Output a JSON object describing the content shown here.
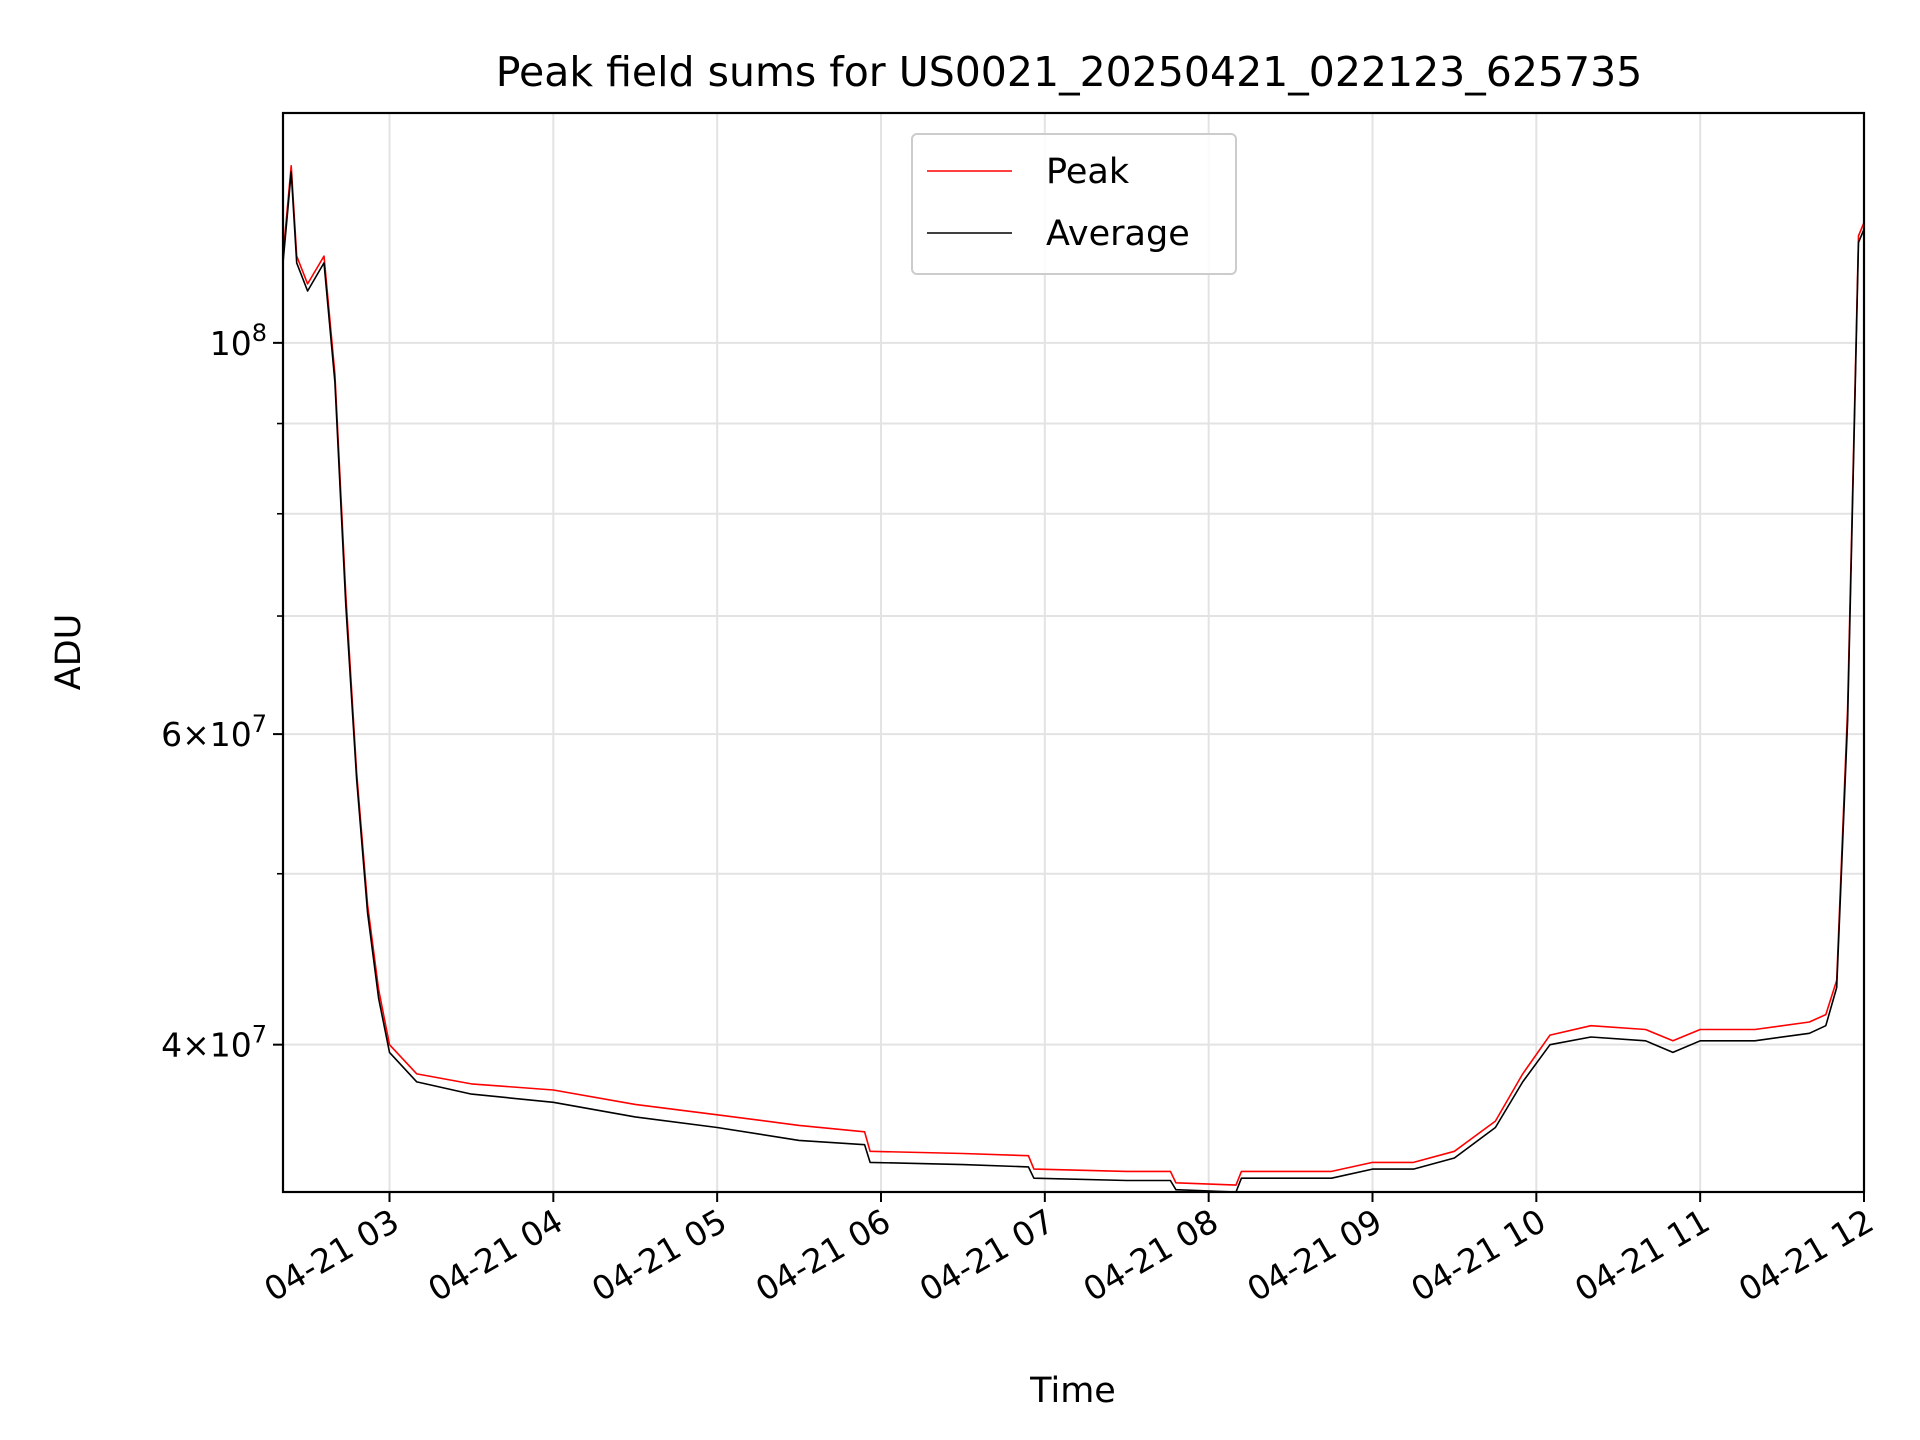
{
  "chart_data": {
    "type": "line",
    "title": "Peak field sums for US0021_20250421_022123_625735",
    "xlabel": "Time",
    "ylabel": "ADU",
    "yscale": "log",
    "grid": true,
    "legend_position": "top-center",
    "x_ticks": [
      "04-21 03",
      "04-21 04",
      "04-21 05",
      "04-21 06",
      "04-21 07",
      "04-21 08",
      "04-21 09",
      "04-21 10",
      "04-21 11",
      "04-21 12"
    ],
    "y_ticks": [
      "10^8",
      "6×10^7",
      "4×10^7"
    ],
    "xlim": [
      "2025-04-21 02:21",
      "2025-04-21 12:00"
    ],
    "ylim": [
      33000000,
      135000000
    ],
    "series": [
      {
        "name": "Peak",
        "color": "#ff0000",
        "x": [
          "2025-04-21 02:21",
          "2025-04-21 02:24",
          "2025-04-21 02:26",
          "2025-04-21 02:30",
          "2025-04-21 02:36",
          "2025-04-21 02:40",
          "2025-04-21 02:44",
          "2025-04-21 02:48",
          "2025-04-21 02:52",
          "2025-04-21 02:56",
          "2025-04-21 03:00",
          "2025-04-21 03:10",
          "2025-04-21 03:30",
          "2025-04-21 04:00",
          "2025-04-21 04:30",
          "2025-04-21 05:00",
          "2025-04-21 05:30",
          "2025-04-21 05:54",
          "2025-04-21 05:56",
          "2025-04-21 06:30",
          "2025-04-21 06:54",
          "2025-04-21 06:56",
          "2025-04-21 07:30",
          "2025-04-21 07:46",
          "2025-04-21 07:48",
          "2025-04-21 08:10",
          "2025-04-21 08:12",
          "2025-04-21 08:45",
          "2025-04-21 09:00",
          "2025-04-21 09:15",
          "2025-04-21 09:30",
          "2025-04-21 09:45",
          "2025-04-21 09:55",
          "2025-04-21 10:05",
          "2025-04-21 10:20",
          "2025-04-21 10:40",
          "2025-04-21 10:50",
          "2025-04-21 11:00",
          "2025-04-21 11:20",
          "2025-04-21 11:40",
          "2025-04-21 11:46",
          "2025-04-21 11:50",
          "2025-04-21 11:54",
          "2025-04-21 11:58",
          "2025-04-21 12:00"
        ],
        "values": [
          112000000,
          126000000,
          112000000,
          108000000,
          112000000,
          96000000,
          72000000,
          57000000,
          48000000,
          43000000,
          40000000,
          38500000,
          38000000,
          37700000,
          37000000,
          36500000,
          36000000,
          35700000,
          34800000,
          34700000,
          34600000,
          34000000,
          33900000,
          33900000,
          33400000,
          33300000,
          33900000,
          33900000,
          34300000,
          34300000,
          34800000,
          36200000,
          38500000,
          40500000,
          41000000,
          40800000,
          40200000,
          40800000,
          40800000,
          41200000,
          41600000,
          43500000,
          62000000,
          115000000,
          117000000
        ]
      },
      {
        "name": "Average",
        "color": "#000000",
        "x": [
          "2025-04-21 02:21",
          "2025-04-21 02:24",
          "2025-04-21 02:26",
          "2025-04-21 02:30",
          "2025-04-21 02:36",
          "2025-04-21 02:40",
          "2025-04-21 02:44",
          "2025-04-21 02:48",
          "2025-04-21 02:52",
          "2025-04-21 02:56",
          "2025-04-21 03:00",
          "2025-04-21 03:10",
          "2025-04-21 03:30",
          "2025-04-21 04:00",
          "2025-04-21 04:30",
          "2025-04-21 05:00",
          "2025-04-21 05:30",
          "2025-04-21 05:54",
          "2025-04-21 05:56",
          "2025-04-21 06:30",
          "2025-04-21 06:54",
          "2025-04-21 06:56",
          "2025-04-21 07:30",
          "2025-04-21 07:46",
          "2025-04-21 07:48",
          "2025-04-21 08:10",
          "2025-04-21 08:12",
          "2025-04-21 08:45",
          "2025-04-21 09:00",
          "2025-04-21 09:15",
          "2025-04-21 09:30",
          "2025-04-21 09:45",
          "2025-04-21 09:55",
          "2025-04-21 10:05",
          "2025-04-21 10:20",
          "2025-04-21 10:40",
          "2025-04-21 10:50",
          "2025-04-21 11:00",
          "2025-04-21 11:20",
          "2025-04-21 11:40",
          "2025-04-21 11:46",
          "2025-04-21 11:50",
          "2025-04-21 11:54",
          "2025-04-21 11:58",
          "2025-04-21 12:00"
        ],
        "values": [
          111000000,
          125000000,
          111000000,
          107000000,
          111000000,
          95000000,
          71000000,
          56500000,
          47500000,
          42500000,
          39600000,
          38100000,
          37500000,
          37100000,
          36400000,
          35900000,
          35300000,
          35100000,
          34300000,
          34200000,
          34100000,
          33600000,
          33500000,
          33500000,
          33100000,
          33000000,
          33600000,
          33600000,
          34000000,
          34000000,
          34500000,
          35900000,
          38100000,
          40000000,
          40400000,
          40200000,
          39600000,
          40200000,
          40200000,
          40600000,
          41000000,
          43100000,
          61000000,
          114000000,
          116000000
        ]
      }
    ]
  }
}
